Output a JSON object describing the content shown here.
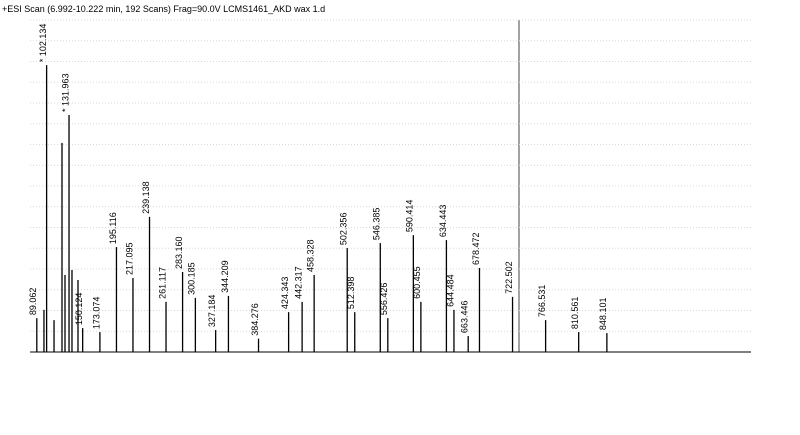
{
  "chart_data": {
    "type": "spectrum",
    "title": "+ESI Scan (6.992-10.222 min, 192 Scans) Frag=90.0V LCMS1461_AKD wax 1.d",
    "x": [
      89.062,
      98.6,
      102.134,
      112.0,
      122.6,
      126.6,
      131.963,
      135.9,
      143.9,
      150.124,
      173.074,
      195.116,
      217.095,
      239.138,
      261.117,
      283.16,
      300.185,
      327.184,
      344.209,
      384.276,
      424.343,
      442.317,
      458.328,
      502.356,
      512.398,
      546.385,
      556.426,
      590.414,
      600.455,
      634.443,
      644.484,
      663.446,
      678.472,
      722.502,
      766.531,
      810.561,
      848.101
    ],
    "values": [
      10.2,
      12.7,
      86.4,
      9.6,
      63.0,
      23.2,
      71.4,
      24.7,
      21.7,
      7.2,
      6.0,
      31.6,
      22.3,
      40.7,
      15.1,
      24.1,
      16.3,
      6.6,
      16.9,
      4.0,
      12.0,
      15.1,
      23.2,
      31.3,
      12.0,
      32.8,
      10.2,
      35.2,
      15.1,
      33.7,
      12.7,
      4.8,
      25.3,
      16.6,
      9.6,
      6.0,
      5.7
    ],
    "peak_labels": [
      "89.062",
      null,
      "* 102.134",
      null,
      null,
      null,
      "* 131.963",
      null,
      null,
      "150.124",
      "173.074",
      "195.116",
      "217.095",
      "239.138",
      "261.117",
      "283.160",
      "300.185",
      "327.184",
      "344.209",
      "384.276",
      "424.343",
      "442.317",
      "458.328",
      "502.356",
      "512.398",
      "546.385",
      "556.426",
      "590.414",
      "600.455",
      "634.443",
      "644.484",
      "663.446",
      "678.472",
      "722.502",
      "766.531",
      "810.561",
      "848.101"
    ],
    "xlim": [
      80,
      1040
    ],
    "ylim": [
      0,
      100
    ],
    "grid": true,
    "color": "#000000"
  }
}
